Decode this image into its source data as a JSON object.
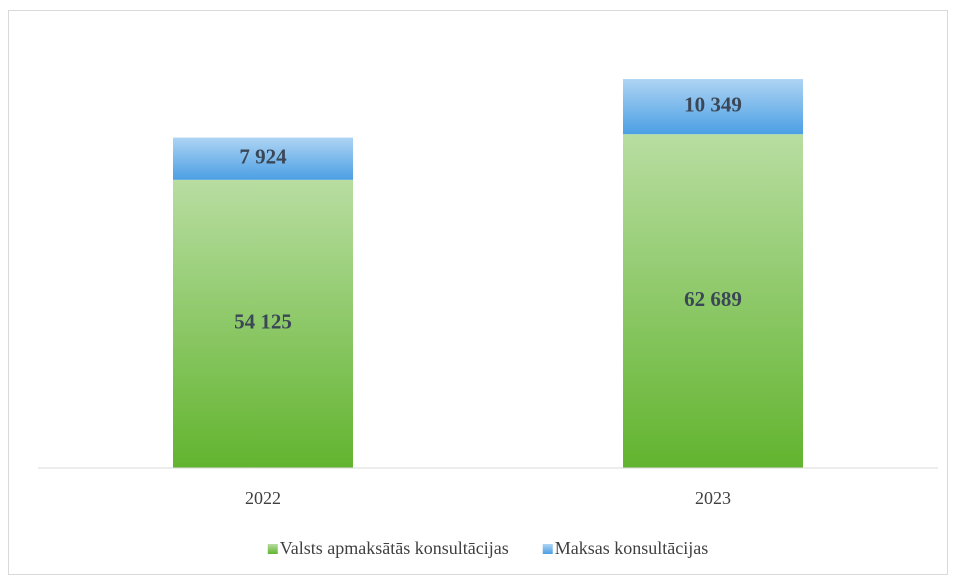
{
  "chart_data": {
    "type": "stacked_bar",
    "categories": [
      "2022",
      "2023"
    ],
    "series": [
      {
        "name": "Valsts apmaksātās konsultācijas",
        "color": "#62b42f",
        "values": [
          54125,
          62689
        ],
        "value_labels": [
          "54 125",
          "62 689"
        ]
      },
      {
        "name": "Maksas konsultācijas",
        "color": "#4b9fe4",
        "values": [
          7924,
          10349
        ],
        "value_labels": [
          "7 924",
          "10 349"
        ]
      }
    ],
    "ylim": [
      0,
      80000
    ],
    "legend": "bottom"
  }
}
